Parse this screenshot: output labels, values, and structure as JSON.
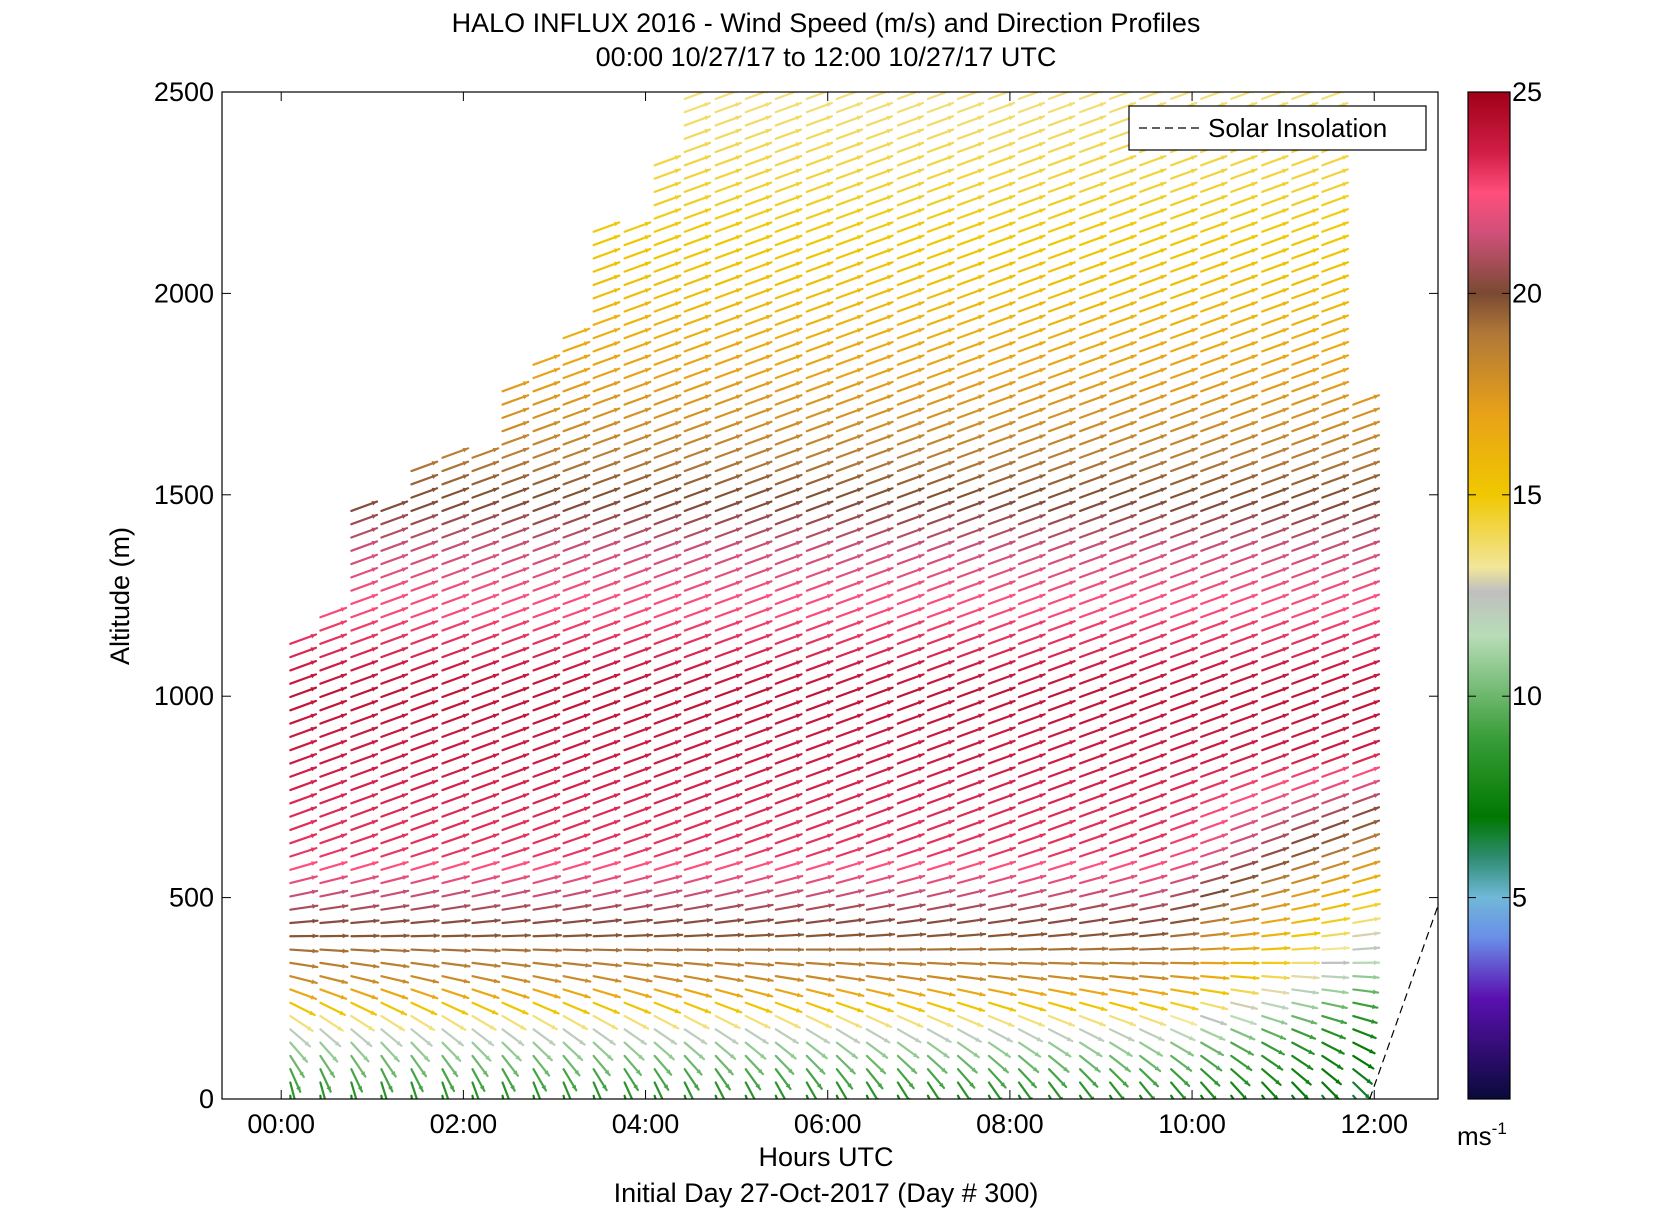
{
  "chart_data": {
    "type": "scatter",
    "title": "HALO INFLUX 2016 - Wind Speed (m/s) and Direction Profiles",
    "subtitle": "00:00 10/27/17 to 12:00 10/27/17  UTC",
    "xlabel": "Hours UTC",
    "ylabel": "Altitude (m)",
    "footer": "Initial Day 27-Oct-2017 (Day # 300)",
    "xlim": [
      -0.65,
      12.7
    ],
    "ylim": [
      0,
      2500
    ],
    "x_ticks": [
      0,
      2,
      4,
      6,
      8,
      10,
      12
    ],
    "x_tick_labels": [
      "00:00",
      "02:00",
      "04:00",
      "06:00",
      "08:00",
      "10:00",
      "12:00"
    ],
    "y_ticks": [
      0,
      500,
      1000,
      1500,
      2000,
      2500
    ],
    "y_tick_labels": [
      "0",
      "500",
      "1000",
      "1500",
      "2000",
      "2500"
    ],
    "legend": {
      "entries": [
        "Solar Insolation"
      ],
      "position": "top-right"
    },
    "colorbar": {
      "min": 0,
      "max": 25,
      "ticks": [
        5,
        10,
        15,
        20,
        25
      ],
      "tick_labels": [
        "5",
        "10",
        "15",
        "20",
        "25"
      ],
      "unit_base": "ms",
      "unit_exp": "-1",
      "stops": [
        {
          "v": 0,
          "c": "#0a0a3a"
        },
        {
          "v": 2.5,
          "c": "#5a10b0"
        },
        {
          "v": 4,
          "c": "#6a8ee8"
        },
        {
          "v": 5,
          "c": "#70b8d8"
        },
        {
          "v": 6,
          "c": "#2e8c70"
        },
        {
          "v": 7,
          "c": "#007800"
        },
        {
          "v": 9,
          "c": "#3a9e3a"
        },
        {
          "v": 11.5,
          "c": "#b8dcb8"
        },
        {
          "v": 12.6,
          "c": "#bfbfbf"
        },
        {
          "v": 13.2,
          "c": "#f2e69a"
        },
        {
          "v": 15,
          "c": "#f0c800"
        },
        {
          "v": 17,
          "c": "#e8a218"
        },
        {
          "v": 19,
          "c": "#b07838"
        },
        {
          "v": 20,
          "c": "#7a4a32"
        },
        {
          "v": 21.5,
          "c": "#d0507a"
        },
        {
          "v": 22.5,
          "c": "#ff4e7c"
        },
        {
          "v": 23.5,
          "c": "#d01e46"
        },
        {
          "v": 25,
          "c": "#a00018"
        }
      ]
    },
    "series": [
      {
        "name": "Solar Insolation",
        "style": "dashed",
        "color": "#000000",
        "x": [
          11.95,
          12.7
        ],
        "y": [
          0,
          480
        ]
      }
    ],
    "wind_field": {
      "times": [
        0.1,
        0.43,
        0.77,
        1.1,
        1.43,
        1.77,
        2.1,
        2.43,
        2.77,
        3.1,
        3.43,
        3.77,
        4.1,
        4.43,
        4.77,
        5.1,
        5.43,
        5.77,
        6.1,
        6.43,
        6.77,
        7.1,
        7.43,
        7.77,
        8.1,
        8.43,
        8.77,
        9.1,
        9.43,
        9.77,
        10.1,
        10.43,
        10.77,
        11.1,
        11.43,
        11.77
      ],
      "top_altitude_m": [
        1130,
        1220,
        1470,
        1480,
        1590,
        1610,
        1610,
        1760,
        1840,
        1900,
        2170,
        2170,
        2320,
        2500,
        2500,
        2500,
        2500,
        2500,
        2500,
        2500,
        2500,
        2500,
        2500,
        2500,
        2500,
        2500,
        2500,
        2500,
        2500,
        2500,
        2500,
        2500,
        2500,
        2500,
        2500,
        1740
      ],
      "altitude_step_m": 33,
      "speed_profile_ms": [
        {
          "z": 0,
          "v": 7.5
        },
        {
          "z": 150,
          "v": 11
        },
        {
          "z": 300,
          "v": 18
        },
        {
          "z": 600,
          "v": 23
        },
        {
          "z": 1000,
          "v": 24
        },
        {
          "z": 1350,
          "v": 21.5
        },
        {
          "z": 1650,
          "v": 18
        },
        {
          "z": 2000,
          "v": 15.5
        },
        {
          "z": 2500,
          "v": 13.5
        }
      ],
      "late_slowdown": {
        "start_time": 9.6,
        "end_time": 11.8,
        "top_altitude_m": 850,
        "min_speed_ms": 6.5
      },
      "direction_note": "arrows point toward the upper right aloft, turning to southward near the surface"
    }
  }
}
